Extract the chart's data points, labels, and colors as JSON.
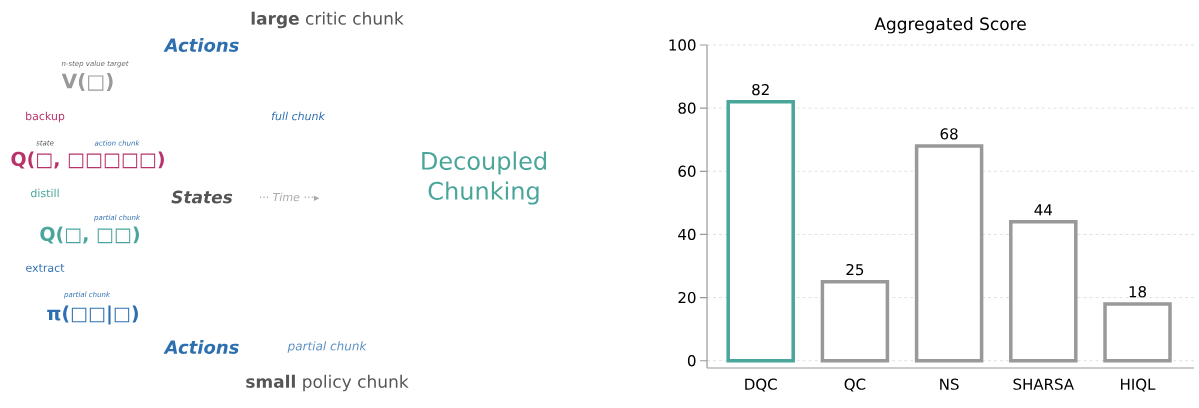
{
  "chart_data": [
    {
      "type": "other",
      "annotations": [
        "**large** critic chunk",
        "Actions",
        "n-step value target",
        "V(□)",
        "backup",
        "state",
        "action chunk",
        "Q(□, □□□□□)",
        "full chunk",
        "distill",
        "States",
        "··· Time ···▸",
        "partial chunk",
        "Q(□, □□)",
        "extract",
        "partial chunk",
        "π(□□|□)",
        "Actions",
        "partial chunk",
        "**small** policy chunk",
        "Decoupled Chunking"
      ]
    },
    {
      "type": "bar",
      "title": "Aggregated Score",
      "categories": [
        "DQC",
        "QC",
        "NS",
        "SHARSA",
        "HIQL"
      ],
      "values": [
        82,
        25,
        68,
        44,
        18
      ],
      "colors": [
        "#4aa59a",
        "#999999",
        "#999999",
        "#999999",
        "#999999"
      ],
      "ylim": [
        0,
        100
      ],
      "yticks": [
        0,
        20,
        40,
        60,
        80,
        100
      ],
      "grid": "y",
      "data_labels": true
    }
  ]
}
